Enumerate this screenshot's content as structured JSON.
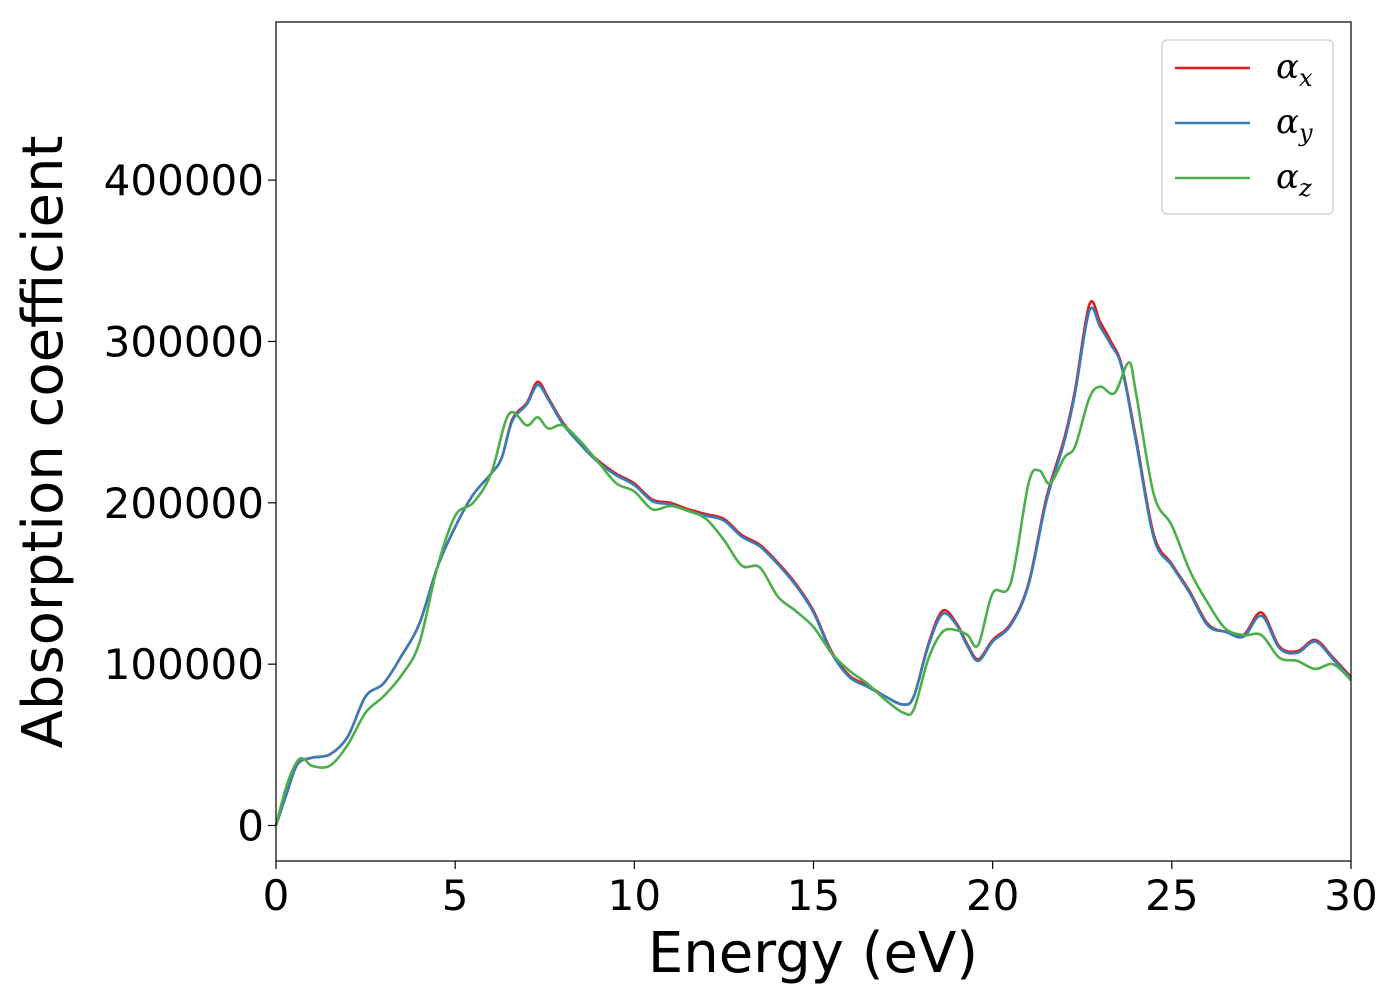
{
  "chart_data": {
    "type": "line",
    "title": "",
    "xlabel": "Energy (eV)",
    "ylabel": "Absorption coefficient",
    "xlim": [
      0,
      30
    ],
    "ylim": [
      -22000,
      498000
    ],
    "xticks": [
      0,
      5,
      10,
      15,
      20,
      25,
      30
    ],
    "xtick_labels": [
      "0",
      "5",
      "10",
      "15",
      "20",
      "25",
      "30"
    ],
    "yticks": [
      0,
      100000,
      200000,
      300000,
      400000
    ],
    "ytick_labels": [
      "0",
      "100000",
      "200000",
      "300000",
      "400000"
    ],
    "grid": false,
    "legend_position": "top-right",
    "series": [
      {
        "name": "α_x",
        "symbol": "α",
        "subscript": "x",
        "color": "#e41a1c",
        "x": [
          0,
          0.3,
          0.6,
          1.0,
          1.5,
          2.0,
          2.5,
          3.0,
          3.5,
          4.0,
          4.5,
          5.0,
          5.5,
          6.0,
          6.3,
          6.6,
          7.0,
          7.3,
          7.6,
          8.0,
          8.5,
          9.0,
          9.5,
          10.0,
          10.5,
          11.0,
          11.5,
          12.0,
          12.5,
          13.0,
          13.5,
          14.0,
          14.5,
          15.0,
          15.5,
          16.0,
          16.5,
          17.0,
          17.5,
          17.8,
          18.2,
          18.6,
          19.0,
          19.3,
          19.6,
          20.0,
          20.5,
          21.0,
          21.5,
          22.0,
          22.3,
          22.7,
          23.0,
          23.3,
          23.6,
          24.0,
          24.5,
          25.0,
          25.5,
          26.0,
          26.5,
          27.0,
          27.5,
          28.0,
          28.5,
          29.0,
          29.5,
          30.0
        ],
        "y": [
          0,
          20000,
          38000,
          42000,
          44000,
          55000,
          80000,
          88000,
          105000,
          125000,
          160000,
          185000,
          205000,
          218000,
          228000,
          252000,
          262000,
          275000,
          265000,
          250000,
          237000,
          226000,
          218000,
          212000,
          202000,
          200000,
          196000,
          193000,
          190000,
          180000,
          174000,
          163000,
          150000,
          133000,
          108000,
          93000,
          87000,
          80000,
          75000,
          80000,
          112000,
          133000,
          125000,
          112000,
          103000,
          115000,
          125000,
          150000,
          203000,
          240000,
          270000,
          323000,
          312000,
          300000,
          285000,
          240000,
          180000,
          162000,
          145000,
          125000,
          120000,
          118000,
          132000,
          111000,
          108000,
          115000,
          104000,
          92000
        ]
      },
      {
        "name": "α_y",
        "symbol": "α",
        "subscript": "y",
        "color": "#377eb8",
        "x": [
          0,
          0.3,
          0.6,
          1.0,
          1.5,
          2.0,
          2.5,
          3.0,
          3.5,
          4.0,
          4.5,
          5.0,
          5.5,
          6.0,
          6.3,
          6.6,
          7.0,
          7.3,
          7.6,
          8.0,
          8.5,
          9.0,
          9.5,
          10.0,
          10.5,
          11.0,
          11.5,
          12.0,
          12.5,
          13.0,
          13.5,
          14.0,
          14.5,
          15.0,
          15.5,
          16.0,
          16.5,
          17.0,
          17.5,
          17.8,
          18.2,
          18.6,
          19.0,
          19.3,
          19.6,
          20.0,
          20.5,
          21.0,
          21.5,
          22.0,
          22.3,
          22.7,
          23.0,
          23.3,
          23.6,
          24.0,
          24.5,
          25.0,
          25.5,
          26.0,
          26.5,
          27.0,
          27.5,
          28.0,
          28.5,
          29.0,
          29.5,
          30.0
        ],
        "y": [
          0,
          20000,
          38000,
          42000,
          44000,
          55000,
          80000,
          88000,
          105000,
          125000,
          160000,
          185000,
          205000,
          218000,
          228000,
          251000,
          261000,
          273000,
          264000,
          249000,
          236000,
          225000,
          217000,
          211000,
          201000,
          199000,
          195000,
          192000,
          189000,
          179000,
          173000,
          162000,
          149000,
          132000,
          107000,
          92000,
          86000,
          80000,
          75000,
          80000,
          111000,
          131000,
          124000,
          111000,
          102000,
          114000,
          124000,
          149000,
          201000,
          238000,
          268000,
          319000,
          309000,
          298000,
          284000,
          238000,
          178000,
          161000,
          144000,
          124000,
          120000,
          117000,
          130000,
          110000,
          107000,
          114000,
          103000,
          91000
        ]
      },
      {
        "name": "α_z",
        "symbol": "α",
        "subscript": "z",
        "color": "#4daf4a",
        "x": [
          0,
          0.3,
          0.6,
          0.8,
          1.0,
          1.5,
          2.0,
          2.5,
          3.0,
          3.5,
          4.0,
          4.5,
          5.0,
          5.5,
          6.0,
          6.5,
          7.0,
          7.3,
          7.6,
          8.0,
          8.5,
          9.0,
          9.5,
          10.0,
          10.5,
          11.0,
          11.5,
          12.0,
          12.5,
          13.0,
          13.5,
          14.0,
          14.5,
          15.0,
          15.5,
          16.0,
          16.5,
          17.0,
          17.5,
          17.8,
          18.2,
          18.6,
          19.0,
          19.3,
          19.6,
          20.0,
          20.5,
          21.0,
          21.3,
          21.6,
          22.0,
          22.3,
          22.7,
          23.0,
          23.4,
          23.8,
          24.0,
          24.5,
          25.0,
          25.5,
          26.0,
          26.5,
          27.0,
          27.5,
          28.0,
          28.5,
          29.0,
          29.5,
          30.0
        ],
        "y": [
          0,
          25000,
          40000,
          41000,
          37000,
          37000,
          50000,
          70000,
          80000,
          93000,
          113000,
          160000,
          192000,
          200000,
          218000,
          255000,
          248000,
          253000,
          246000,
          248000,
          238000,
          225000,
          212000,
          207000,
          196000,
          198000,
          195000,
          190000,
          177000,
          161000,
          160000,
          142000,
          133000,
          123000,
          107000,
          96000,
          88000,
          78000,
          70000,
          72000,
          103000,
          120000,
          121000,
          118000,
          112000,
          144000,
          150000,
          212000,
          220000,
          212000,
          228000,
          235000,
          265000,
          272000,
          268000,
          287000,
          268000,
          205000,
          186000,
          158000,
          138000,
          122000,
          118000,
          118000,
          104000,
          102000,
          97000,
          100000,
          90000
        ]
      }
    ]
  }
}
